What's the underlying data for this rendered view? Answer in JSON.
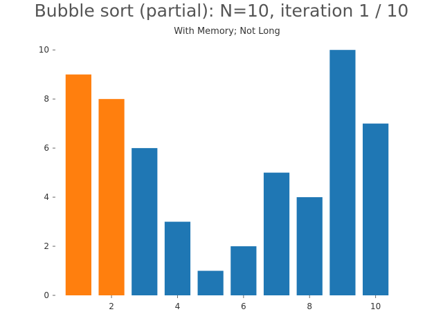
{
  "chart_data": {
    "type": "bar",
    "title": "Bubble sort (partial): N=10, iteration 1 / 10",
    "subtitle": "With Memory; Not Long",
    "xlabel": "",
    "ylabel": "",
    "x": [
      1,
      2,
      3,
      4,
      5,
      6,
      7,
      8,
      9,
      10
    ],
    "values": [
      9,
      8,
      6,
      3,
      1,
      2,
      5,
      4,
      10,
      7
    ],
    "highlighted_indices": [
      0,
      1
    ],
    "colors": {
      "default": "#1f77b4",
      "highlight": "#ff7f0e"
    },
    "xlim": [
      0.3,
      10.7
    ],
    "ylim": [
      0,
      10.4
    ],
    "xticks": [
      2,
      4,
      6,
      8,
      10
    ],
    "xtick_labels": [
      "2",
      "4",
      "6",
      "8",
      "10"
    ],
    "yticks": [
      0,
      2,
      4,
      6,
      8,
      10
    ],
    "ytick_labels": [
      "0",
      "2",
      "4",
      "6",
      "8",
      "10"
    ],
    "grid": false,
    "legend": "none"
  }
}
